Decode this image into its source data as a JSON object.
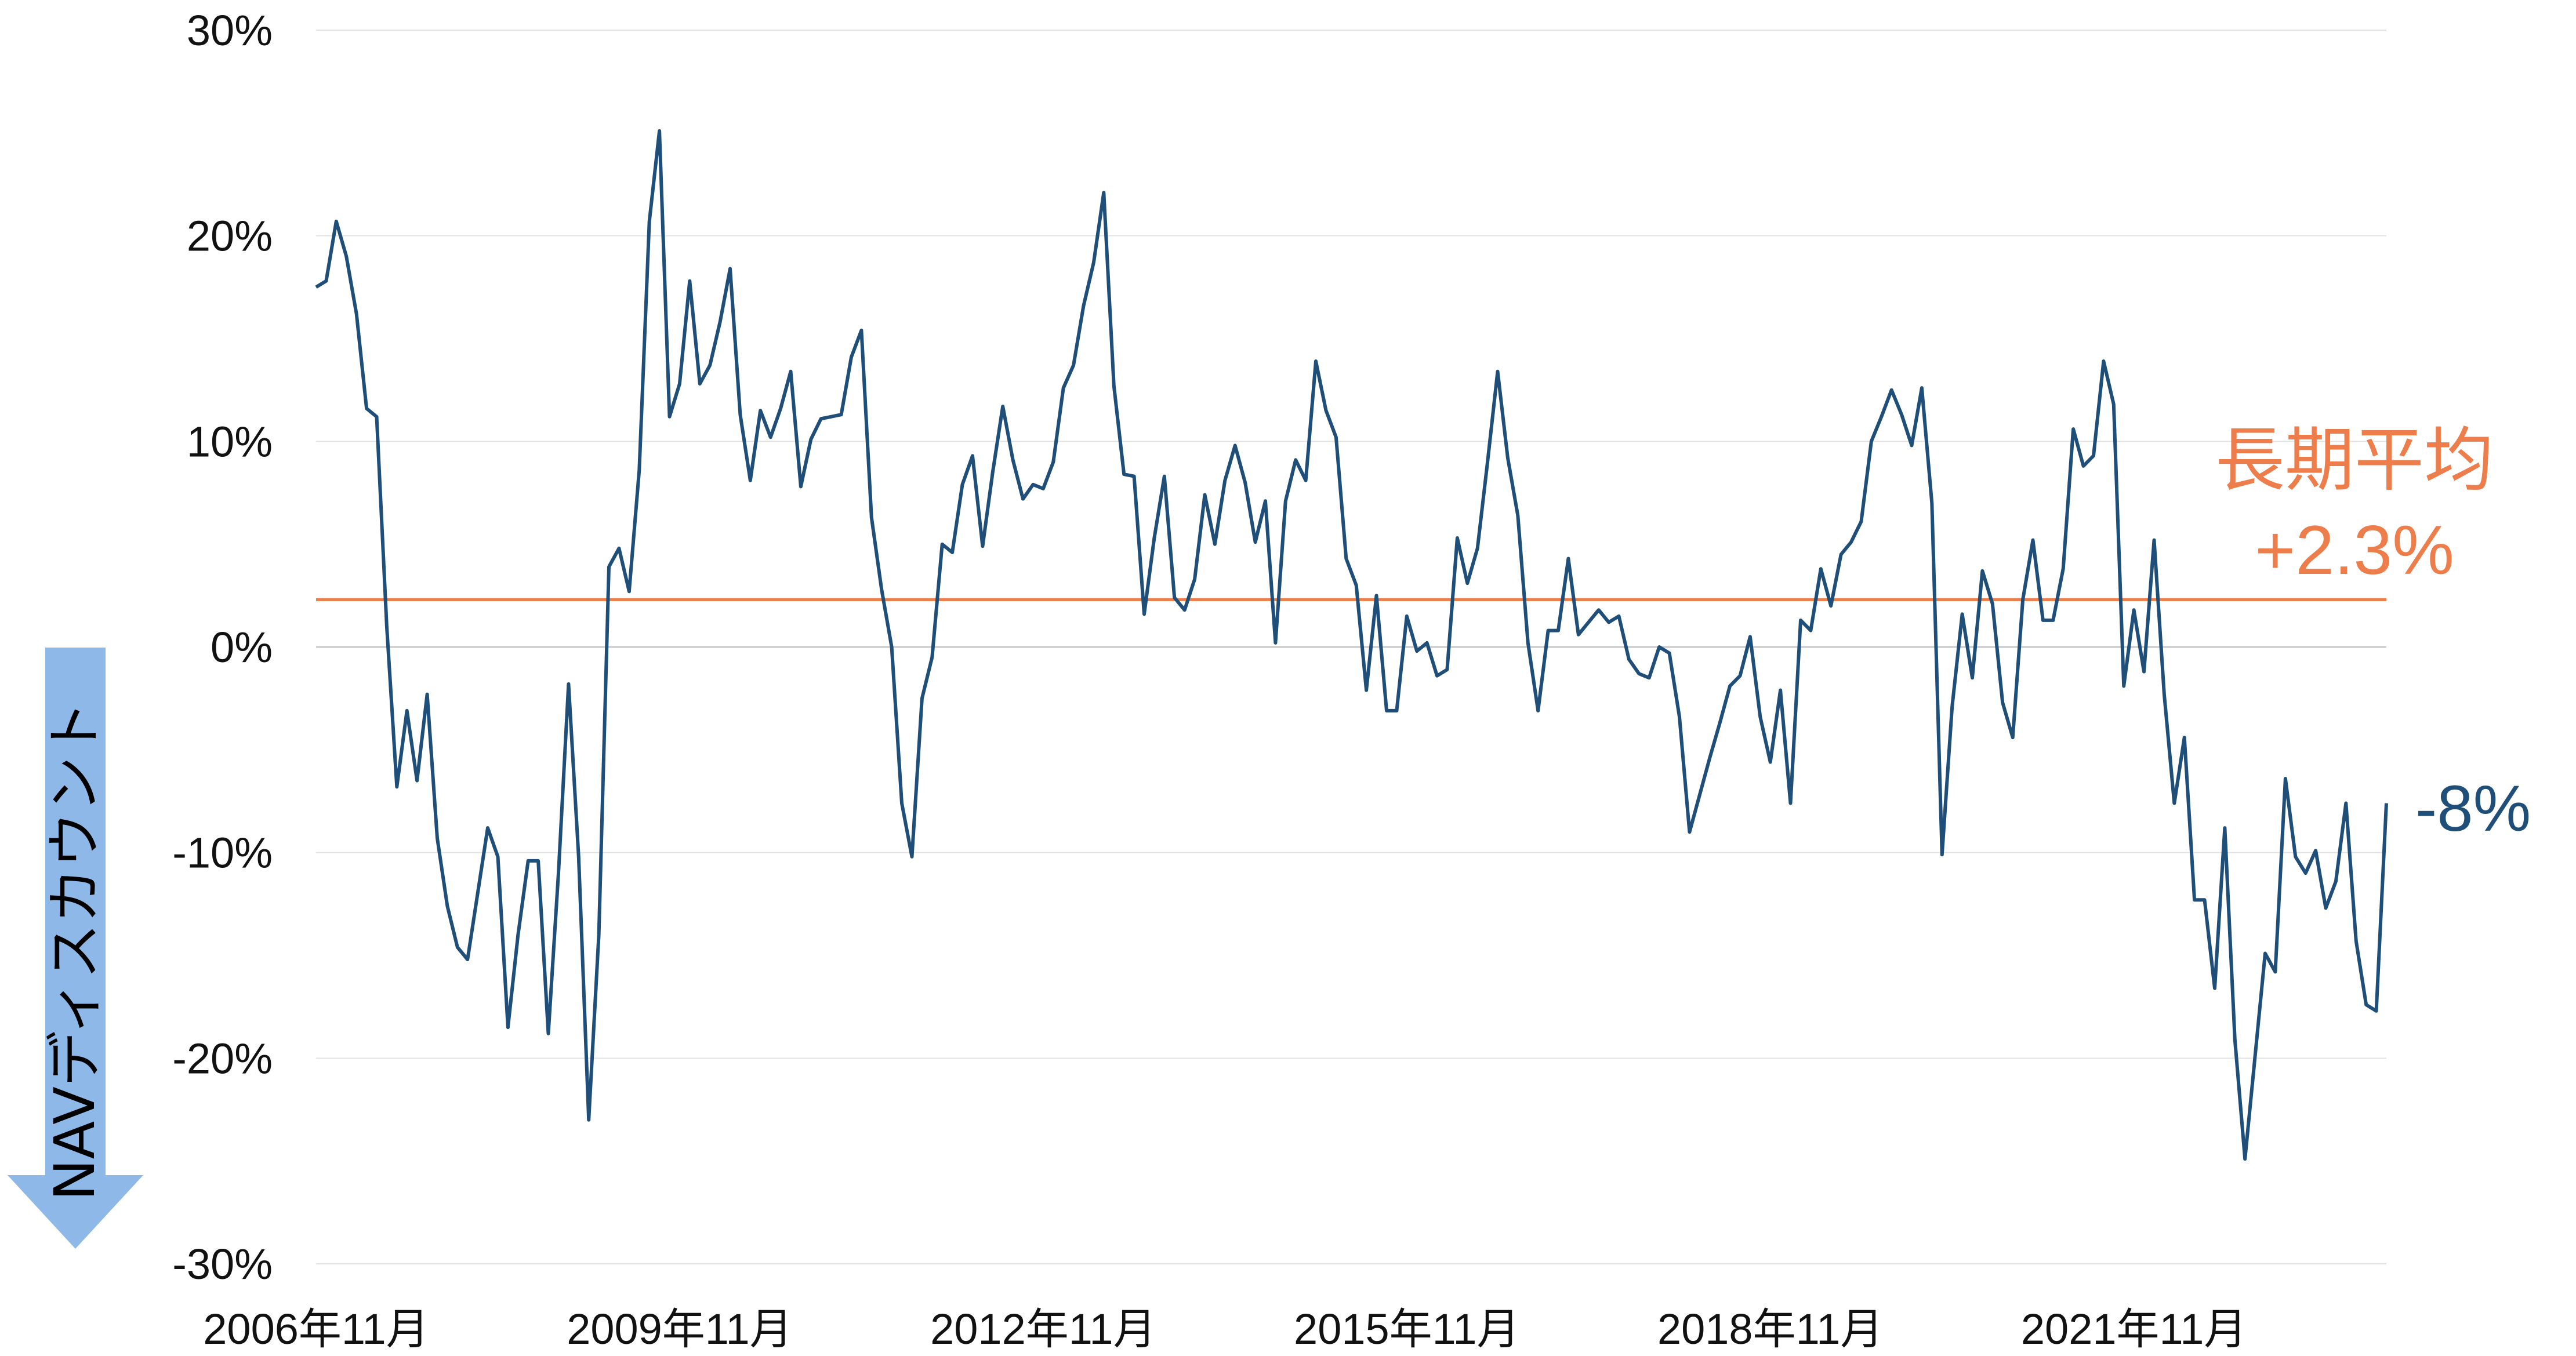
{
  "chart_data": {
    "type": "line",
    "title": "",
    "xlabel": "",
    "ylabel": "NAVディスカウント",
    "ylim": [
      -0.3,
      0.3
    ],
    "yticks": [
      {
        "value": 0.3,
        "label": "30%"
      },
      {
        "value": 0.2,
        "label": "20%"
      },
      {
        "value": 0.1,
        "label": "10%"
      },
      {
        "value": 0.0,
        "label": "0%"
      },
      {
        "value": -0.1,
        "label": "-10%"
      },
      {
        "value": -0.2,
        "label": "-20%"
      },
      {
        "value": -0.3,
        "label": "-30%"
      }
    ],
    "x_start": "2006年11月",
    "xticks": [
      {
        "index": 0,
        "label": "2006年11月"
      },
      {
        "index": 36,
        "label": "2009年11月"
      },
      {
        "index": 72,
        "label": "2012年11月"
      },
      {
        "index": 108,
        "label": "2015年11月"
      },
      {
        "index": 144,
        "label": "2018年11月"
      },
      {
        "index": 180,
        "label": "2021年11月"
      }
    ],
    "grid": true,
    "colors": {
      "series": "#1f4e79",
      "average": "#ed7d4a",
      "arrow": "#8db8e8",
      "grid": "#e3e3e3",
      "zero_line": "#c8c8c8"
    },
    "series": [
      {
        "name": "",
        "values": [
          0.175,
          0.178,
          0.207,
          0.19,
          0.162,
          0.116,
          0.112,
          0.01,
          -0.068,
          -0.031,
          -0.065,
          -0.023,
          -0.093,
          -0.126,
          -0.146,
          -0.152,
          -0.12,
          -0.088,
          -0.102,
          -0.185,
          -0.14,
          -0.104,
          -0.104,
          -0.188,
          -0.11,
          -0.018,
          -0.102,
          -0.23,
          -0.14,
          0.039,
          0.048,
          0.027,
          0.086,
          0.207,
          0.251,
          0.112,
          0.128,
          0.178,
          0.128,
          0.137,
          0.158,
          0.184,
          0.113,
          0.081,
          0.115,
          0.102,
          0.116,
          0.134,
          0.078,
          0.101,
          0.111,
          0.112,
          0.113,
          0.141,
          0.154,
          0.063,
          0.028,
          0.0,
          -0.076,
          -0.102,
          -0.025,
          -0.005,
          0.05,
          0.046,
          0.079,
          0.093,
          0.049,
          0.085,
          0.117,
          0.091,
          0.072,
          0.079,
          0.077,
          0.09,
          0.126,
          0.137,
          0.166,
          0.187,
          0.221,
          0.127,
          0.084,
          0.083,
          0.016,
          0.053,
          0.083,
          0.024,
          0.018,
          0.033,
          0.074,
          0.05,
          0.081,
          0.098,
          0.08,
          0.051,
          0.071,
          0.002,
          0.071,
          0.091,
          0.081,
          0.139,
          0.115,
          0.102,
          0.043,
          0.03,
          -0.021,
          0.025,
          -0.031,
          -0.031,
          0.015,
          -0.002,
          0.002,
          -0.014,
          -0.011,
          0.053,
          0.031,
          0.048,
          0.09,
          0.134,
          0.092,
          0.064,
          0.002,
          -0.031,
          0.008,
          0.008,
          0.043,
          0.006,
          0.012,
          0.018,
          0.012,
          0.015,
          -0.006,
          -0.013,
          -0.015,
          0.0,
          -0.003,
          -0.034,
          -0.09,
          -0.072,
          -0.054,
          -0.037,
          -0.019,
          -0.014,
          0.005,
          -0.034,
          -0.056,
          -0.021,
          -0.076,
          0.013,
          0.008,
          0.038,
          0.02,
          0.045,
          0.051,
          0.061,
          0.1,
          0.112,
          0.125,
          0.113,
          0.098,
          0.126,
          0.07,
          -0.101,
          -0.029,
          0.016,
          -0.015,
          0.037,
          0.021,
          -0.027,
          -0.044,
          0.023,
          0.052,
          0.013,
          0.013,
          0.038,
          0.106,
          0.088,
          0.093,
          0.139,
          0.118,
          -0.019,
          0.018,
          -0.012,
          0.052,
          -0.023,
          -0.076,
          -0.044,
          -0.123,
          -0.123,
          -0.166,
          -0.088,
          -0.191,
          -0.249,
          -0.199,
          -0.149,
          -0.158,
          -0.064,
          -0.102,
          -0.11,
          -0.099,
          -0.127,
          -0.114,
          -0.076,
          -0.143,
          -0.174,
          -0.177,
          -0.076
        ]
      }
    ],
    "average": {
      "value": 0.023,
      "label_line1": "長期平均",
      "label_line2": "+2.3%"
    },
    "last_label": "-8%"
  }
}
